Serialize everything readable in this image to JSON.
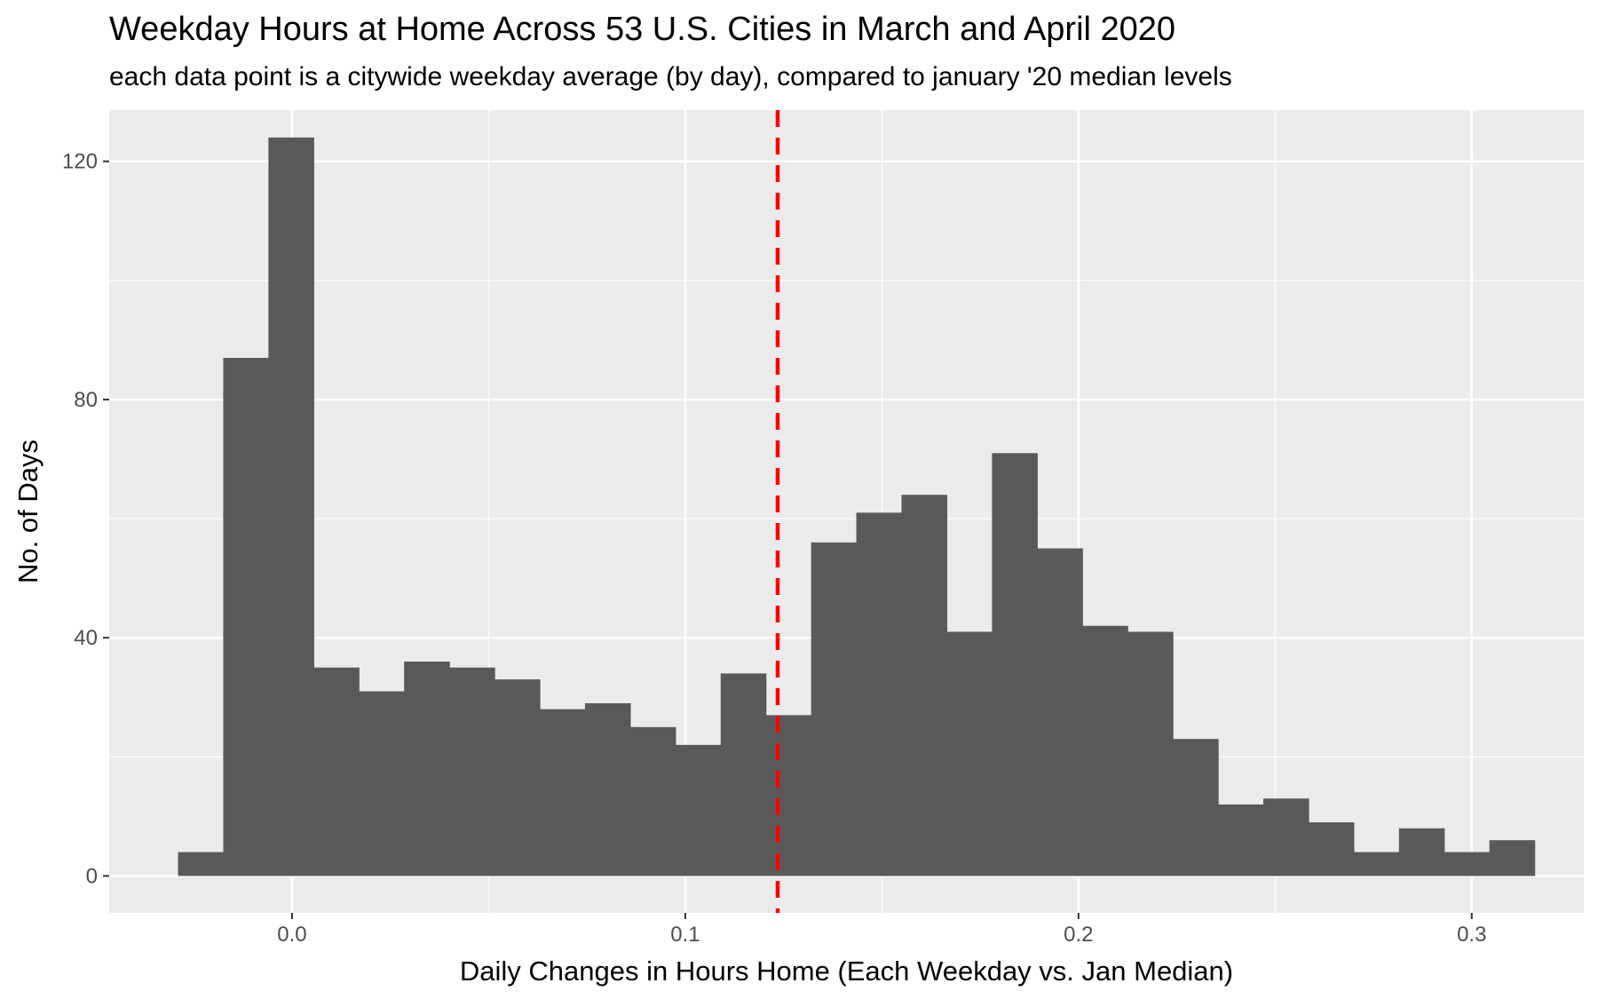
{
  "chart_data": {
    "type": "bar",
    "title": "Weekday Hours at Home Across 53 U.S. Cities in March and April 2020",
    "subtitle": "each data point is a citywide weekday average (by day), compared to january '20 median levels",
    "xlabel": "Daily Changes in Hours Home (Each Weekday vs. Jan Median)",
    "ylabel": "No. of Days",
    "xlim": [
      -0.0465,
      0.3285
    ],
    "ylim": [
      -6.2,
      128.6
    ],
    "x_ticks": [
      0.0,
      0.1,
      0.2,
      0.3
    ],
    "x_tick_labels": [
      "0.0",
      "0.1",
      "0.2",
      "0.3"
    ],
    "y_ticks": [
      0,
      40,
      80,
      120
    ],
    "y_tick_labels": [
      "0",
      "40",
      "80",
      "120"
    ],
    "grid": true,
    "bin_width": 0.0115,
    "bins": [
      {
        "x": [
          -0.029,
          -0.0175
        ],
        "count": 4
      },
      {
        "x": [
          -0.0175,
          -0.006
        ],
        "count": 87
      },
      {
        "x": [
          -0.006,
          0.0055
        ],
        "count": 124
      },
      {
        "x": [
          0.0055,
          0.017
        ],
        "count": 35
      },
      {
        "x": [
          0.017,
          0.0285
        ],
        "count": 31
      },
      {
        "x": [
          0.0285,
          0.04
        ],
        "count": 36
      },
      {
        "x": [
          0.04,
          0.0515
        ],
        "count": 35
      },
      {
        "x": [
          0.0515,
          0.063
        ],
        "count": 33
      },
      {
        "x": [
          0.063,
          0.0745
        ],
        "count": 28
      },
      {
        "x": [
          0.0745,
          0.086
        ],
        "count": 29
      },
      {
        "x": [
          0.086,
          0.0975
        ],
        "count": 25
      },
      {
        "x": [
          0.0975,
          0.109
        ],
        "count": 22
      },
      {
        "x": [
          0.109,
          0.1205
        ],
        "count": 34
      },
      {
        "x": [
          0.1205,
          0.132
        ],
        "count": 27
      },
      {
        "x": [
          0.132,
          0.1435
        ],
        "count": 56
      },
      {
        "x": [
          0.1435,
          0.155
        ],
        "count": 61
      },
      {
        "x": [
          0.155,
          0.1665
        ],
        "count": 64
      },
      {
        "x": [
          0.1665,
          0.178
        ],
        "count": 41
      },
      {
        "x": [
          0.178,
          0.1895
        ],
        "count": 71
      },
      {
        "x": [
          0.1895,
          0.201
        ],
        "count": 55
      },
      {
        "x": [
          0.201,
          0.2125
        ],
        "count": 42
      },
      {
        "x": [
          0.2125,
          0.224
        ],
        "count": 41
      },
      {
        "x": [
          0.224,
          0.2355
        ],
        "count": 23
      },
      {
        "x": [
          0.2355,
          0.247
        ],
        "count": 12
      },
      {
        "x": [
          0.247,
          0.2585
        ],
        "count": 13
      },
      {
        "x": [
          0.2585,
          0.27
        ],
        "count": 9
      },
      {
        "x": [
          0.27,
          0.2815
        ],
        "count": 4
      },
      {
        "x": [
          0.2815,
          0.293
        ],
        "count": 8
      },
      {
        "x": [
          0.293,
          0.3045
        ],
        "count": 4
      },
      {
        "x": [
          0.3045,
          0.316
        ],
        "count": 6
      }
    ],
    "reference_line": {
      "x": 0.1235,
      "style": "dashed",
      "color": "#ff0000"
    },
    "colors": {
      "bar": "#595959",
      "panel": "#ebebeb",
      "grid": "#ffffff",
      "reference": "#ff0000"
    }
  }
}
